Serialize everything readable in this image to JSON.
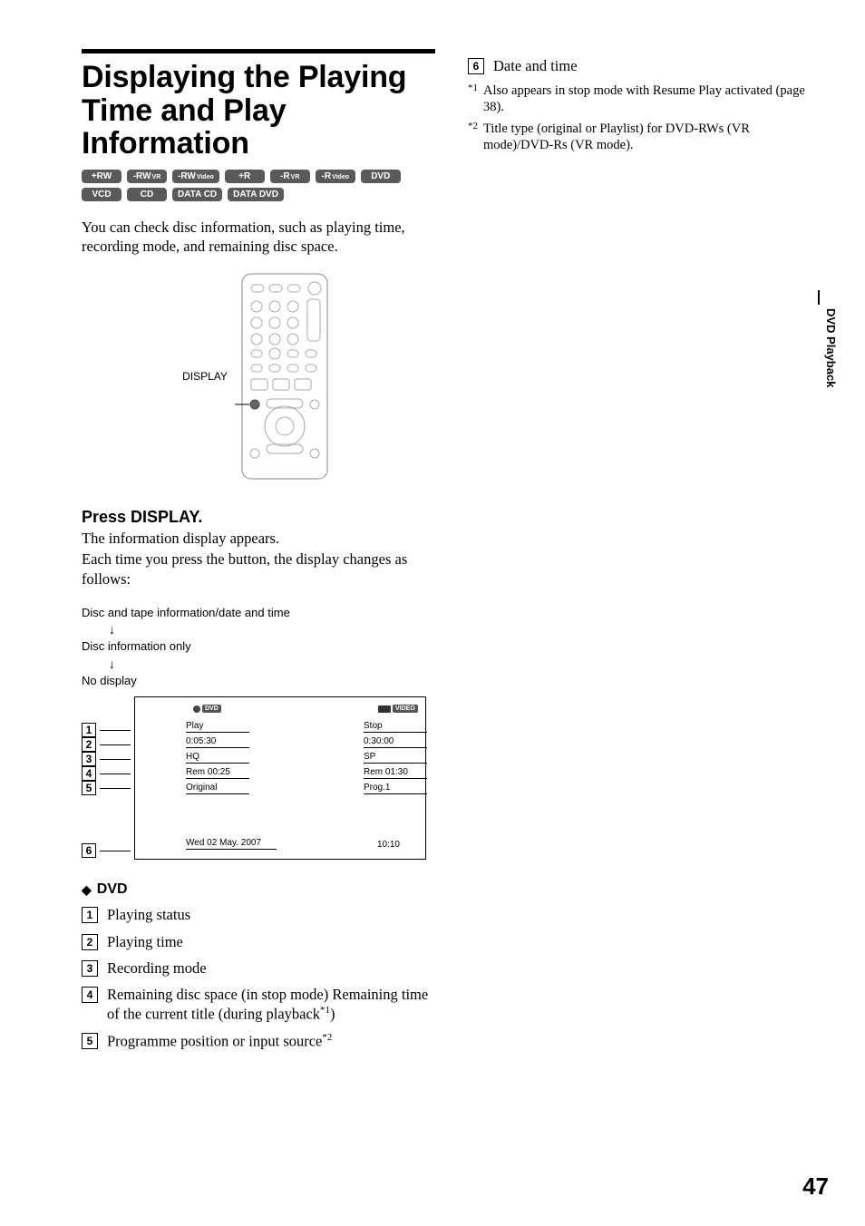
{
  "page_number": "47",
  "side_tab": "DVD Playback",
  "section_title": "Displaying the Playing Time and Play Information",
  "badges": [
    {
      "main": "+RW",
      "sub": ""
    },
    {
      "main": "-RW",
      "sub": "VR"
    },
    {
      "main": "-RW",
      "sub": "Video"
    },
    {
      "main": "+R",
      "sub": ""
    },
    {
      "main": "-R",
      "sub": "VR"
    },
    {
      "main": "-R",
      "sub": "Video"
    },
    {
      "main": "DVD",
      "sub": ""
    },
    {
      "main": "VCD",
      "sub": ""
    },
    {
      "main": "CD",
      "sub": ""
    },
    {
      "main": "DATA CD",
      "sub": ""
    },
    {
      "main": "DATA DVD",
      "sub": ""
    }
  ],
  "intro": "You can check disc information, such as playing time, recording mode, and remaining disc space.",
  "remote_label": "DISPLAY",
  "step_heading": "Press DISPLAY.",
  "step_body_1": "The information display appears.",
  "step_body_2": "Each time you press the button, the display changes as follows:",
  "sequence": [
    "Disc and tape information/date and time",
    "Disc information only",
    "No display"
  ],
  "osd": {
    "left_header": "DVD",
    "right_header": "VIDEO",
    "left_items": [
      "Play",
      "0:05:30",
      "HQ",
      "Rem 00:25",
      "Original"
    ],
    "right_items": [
      "Stop",
      "0:30:00",
      "SP",
      "Rem 01:30",
      "Prog.1"
    ],
    "date": "Wed  02  May. 2007",
    "time": "10:10",
    "callouts": [
      "1",
      "2",
      "3",
      "4",
      "5",
      "6"
    ]
  },
  "dvd_heading": "DVD",
  "definitions": [
    {
      "n": "1",
      "t": "Playing status"
    },
    {
      "n": "2",
      "t": "Playing time"
    },
    {
      "n": "3",
      "t": "Recording mode"
    },
    {
      "n": "4",
      "t": "Remaining disc space (in stop mode) Remaining time of the current title (during playback",
      "sup": "*1",
      "tail": ")"
    },
    {
      "n": "5",
      "t": "Programme position or input source",
      "sup": "*2",
      "tail": ""
    }
  ],
  "right_col": {
    "item6": {
      "n": "6",
      "t": "Date and time"
    },
    "footnotes": [
      {
        "mark": "*1",
        "text": "Also appears in stop mode with Resume Play activated (page 38)."
      },
      {
        "mark": "*2",
        "text": "Title type (original or Playlist) for DVD-RWs (VR mode)/DVD-Rs (VR mode)."
      }
    ]
  },
  "colors": {
    "badge_bg": "#5a5a5a",
    "text": "#000000",
    "bg": "#ffffff"
  }
}
